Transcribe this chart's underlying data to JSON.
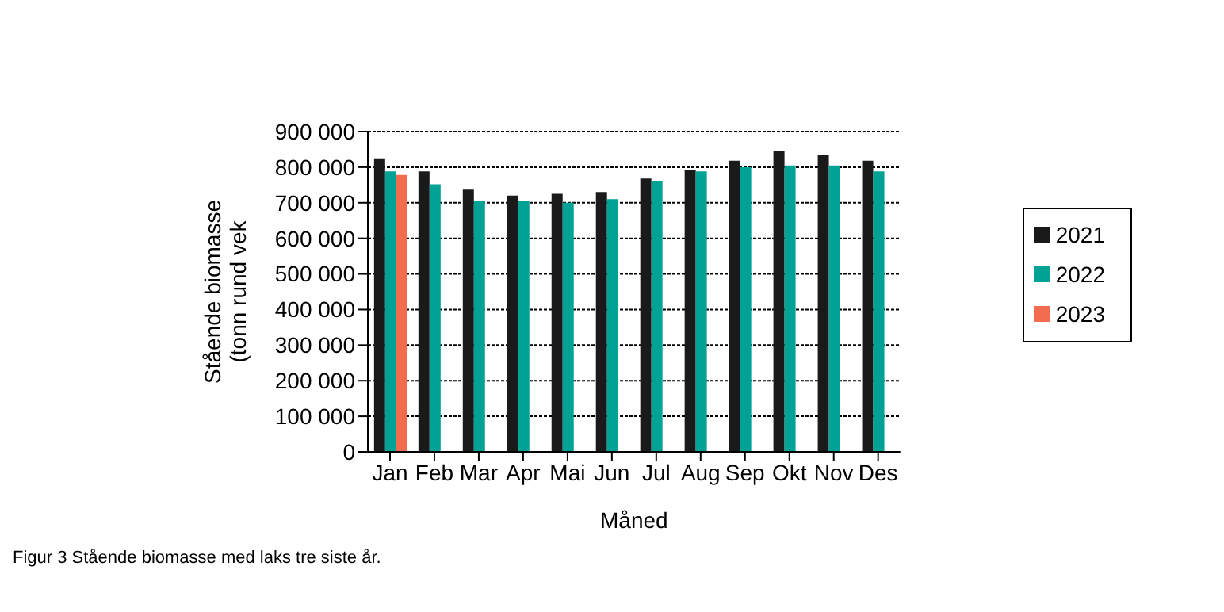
{
  "chart_data": {
    "type": "bar",
    "xlabel": "Måned",
    "ylabel": "Stående biomasse\n(tonn rund vek",
    "categories": [
      "Jan",
      "Feb",
      "Mar",
      "Apr",
      "Mai",
      "Jun",
      "Jul",
      "Aug",
      "Sep",
      "Okt",
      "Nov",
      "Des"
    ],
    "series": [
      {
        "name": "2021",
        "color": "#1a1a1a",
        "values": [
          825000,
          788000,
          737000,
          720000,
          725000,
          730000,
          768000,
          793000,
          818000,
          845000,
          833000,
          818000
        ]
      },
      {
        "name": "2022",
        "color": "#00a296",
        "values": [
          788000,
          752000,
          705000,
          705000,
          700000,
          710000,
          762000,
          788000,
          800000,
          805000,
          805000,
          788000
        ]
      },
      {
        "name": "2023",
        "color": "#f26c4f",
        "values": [
          778000,
          null,
          null,
          null,
          null,
          null,
          null,
          null,
          null,
          null,
          null,
          null
        ]
      }
    ],
    "ylim": [
      0,
      900000
    ],
    "yticks": [
      {
        "value": 0,
        "label": "0"
      },
      {
        "value": 100000,
        "label": "100 000"
      },
      {
        "value": 200000,
        "label": "200 000"
      },
      {
        "value": 300000,
        "label": "300 000"
      },
      {
        "value": 400000,
        "label": "400 000"
      },
      {
        "value": 500000,
        "label": "500 000"
      },
      {
        "value": 600000,
        "label": "600 000"
      },
      {
        "value": 700000,
        "label": "700 000"
      },
      {
        "value": 800000,
        "label": "800 000"
      },
      {
        "value": 900000,
        "label": "900 000"
      }
    ],
    "grid": "y",
    "legend": "right",
    "annotations": [
      "Figur 3 Stående biomasse med laks tre siste år."
    ]
  }
}
